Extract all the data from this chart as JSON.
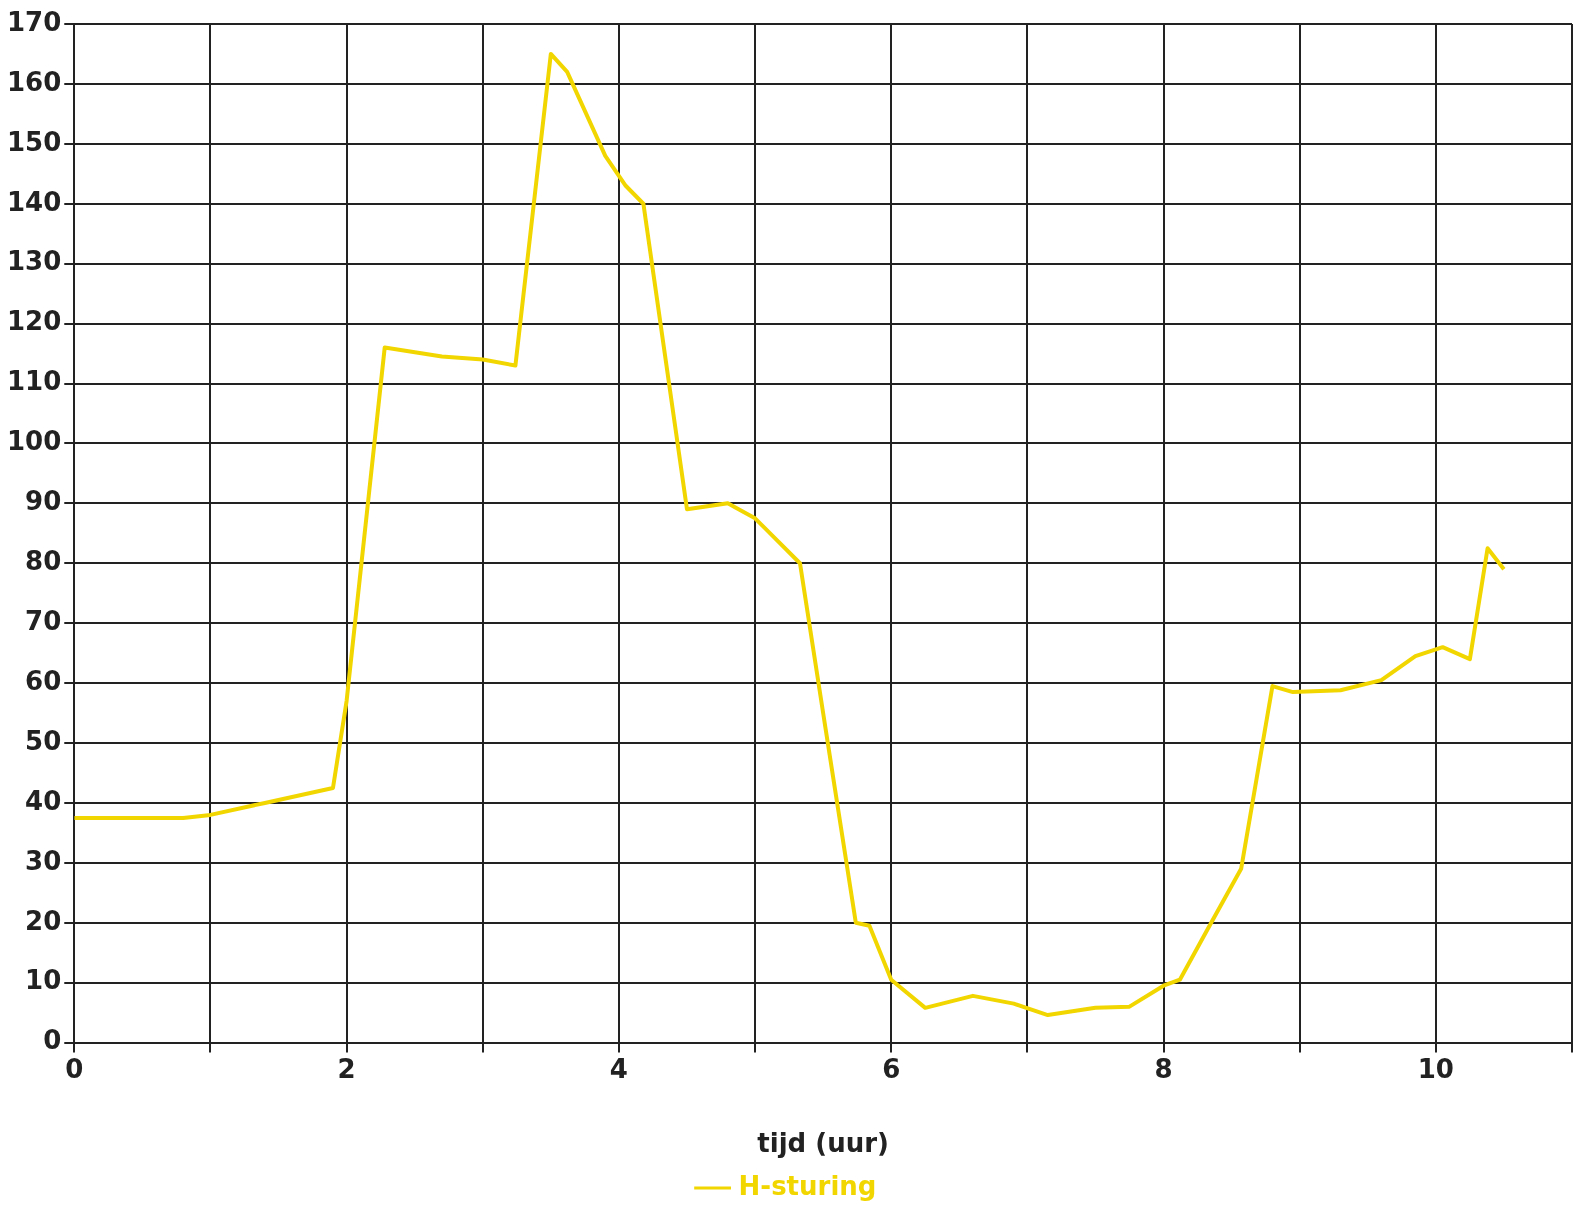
{
  "chart_data": {
    "type": "line",
    "xlabel": "tijd (uur)",
    "series": [
      {
        "name": "H-sturing",
        "color": "#f2d600",
        "x": [
          0,
          0.8,
          1.0,
          1.4,
          1.9,
          2.0,
          2.28,
          2.7,
          3.0,
          3.24,
          3.5,
          3.62,
          3.9,
          4.05,
          4.18,
          4.5,
          4.8,
          5.0,
          5.33,
          5.5,
          5.74,
          5.84,
          6.0,
          6.25,
          6.6,
          6.9,
          7.15,
          7.5,
          7.75,
          8.0,
          8.12,
          8.35,
          8.57,
          8.8,
          8.95,
          9.3,
          9.6,
          9.85,
          10.05,
          10.25,
          10.38,
          10.5
        ],
        "values": [
          37.5,
          37.5,
          38,
          40,
          42.5,
          57,
          116,
          114.5,
          114,
          113,
          165,
          162,
          148,
          143,
          140,
          89,
          90,
          87.5,
          80,
          55,
          20,
          19.5,
          10.5,
          5.8,
          7.8,
          6.5,
          4.6,
          5.8,
          6,
          9.5,
          10.5,
          20,
          29,
          59.5,
          58.5,
          58.8,
          60.5,
          64.5,
          66,
          64,
          82.5,
          79
        ]
      }
    ],
    "xlim": [
      0,
      11
    ],
    "xticks": [
      0,
      {
        "value": 1,
        "label": null
      },
      2,
      {
        "value": 3,
        "label": null
      },
      4,
      {
        "value": 5,
        "label": null
      },
      6,
      {
        "value": 7,
        "label": null
      },
      8,
      {
        "value": 9,
        "label": null
      },
      10,
      {
        "value": 11,
        "label": null
      }
    ],
    "ylim": [
      0,
      170
    ],
    "yticks": [
      0,
      10,
      20,
      30,
      40,
      50,
      60,
      70,
      80,
      90,
      100,
      110,
      120,
      130,
      140,
      150,
      160,
      170
    ],
    "grid": true,
    "legend": "bottom",
    "marker": "none",
    "line_style": "solid"
  }
}
